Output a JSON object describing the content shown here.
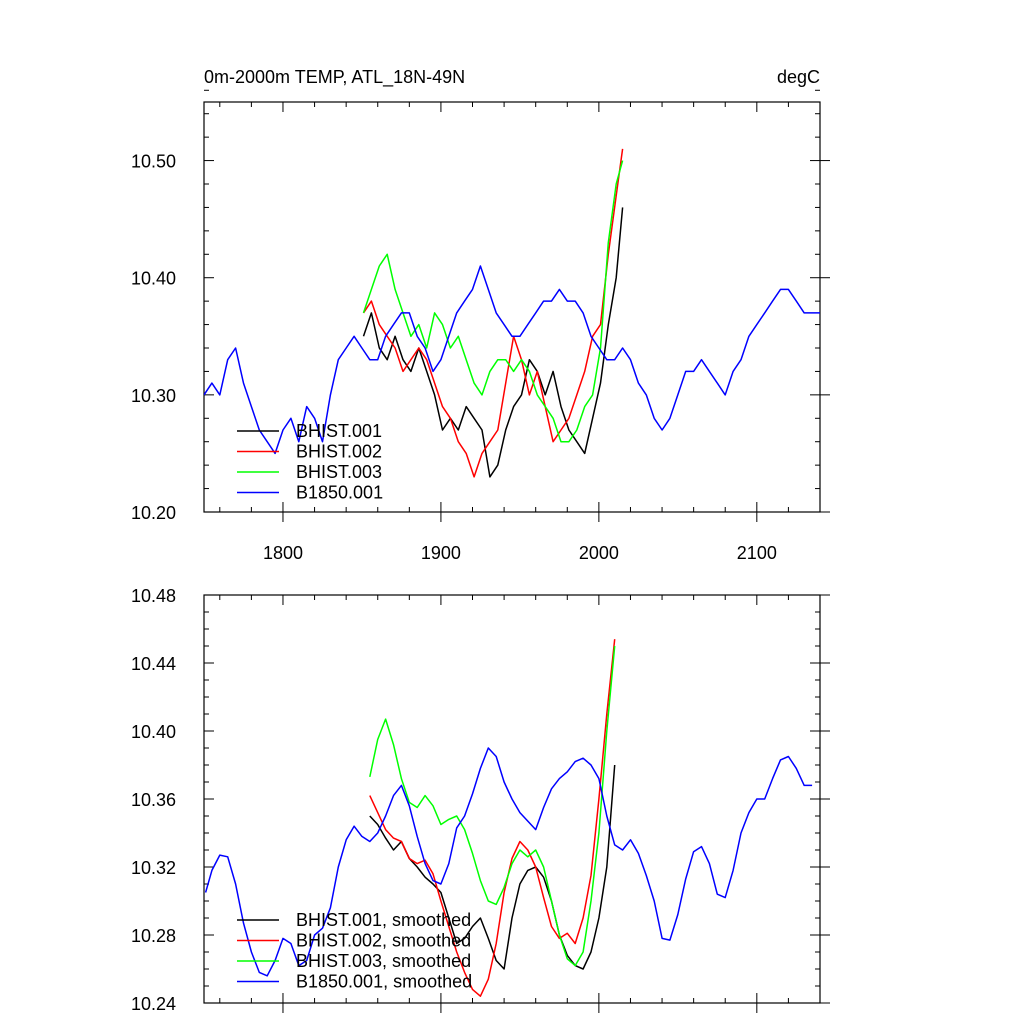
{
  "chart_data": [
    {
      "type": "line",
      "title": "0m-2000m TEMP, ATL_18N-49N",
      "units": "degC",
      "xlabel": "",
      "ylabel": "",
      "xlim": [
        1750,
        2140
      ],
      "ylim": [
        10.2,
        10.55
      ],
      "xticks": [
        1800,
        1900,
        2000,
        2100
      ],
      "xtick_labels": [
        "1800",
        "1900",
        "2000",
        "2100"
      ],
      "yticks": [
        10.2,
        10.3,
        10.4,
        10.5
      ],
      "ytick_labels": [
        "10.20",
        "10.30",
        "10.40",
        "10.50"
      ],
      "legend_position": "bottom-left",
      "grid": false,
      "series": [
        {
          "name": "BHIST.001",
          "color": "#000000",
          "x": [
            1851,
            1856,
            1861,
            1866,
            1871,
            1876,
            1881,
            1886,
            1891,
            1896,
            1901,
            1906,
            1911,
            1916,
            1921,
            1926,
            1931,
            1936,
            1941,
            1946,
            1951,
            1956,
            1961,
            1966,
            1971,
            1976,
            1981,
            1986,
            1991,
            1996,
            2001,
            2006,
            2011,
            2015
          ],
          "y": [
            10.35,
            10.37,
            10.34,
            10.33,
            10.35,
            10.33,
            10.32,
            10.34,
            10.32,
            10.3,
            10.27,
            10.28,
            10.27,
            10.29,
            10.28,
            10.27,
            10.23,
            10.24,
            10.27,
            10.29,
            10.3,
            10.33,
            10.32,
            10.3,
            10.32,
            10.29,
            10.27,
            10.26,
            10.25,
            10.28,
            10.31,
            10.36,
            10.4,
            10.46
          ]
        },
        {
          "name": "BHIST.002",
          "color": "#ff0000",
          "x": [
            1851,
            1856,
            1861,
            1866,
            1871,
            1876,
            1881,
            1886,
            1891,
            1896,
            1901,
            1906,
            1911,
            1916,
            1921,
            1926,
            1931,
            1936,
            1941,
            1946,
            1951,
            1956,
            1961,
            1966,
            1971,
            1976,
            1981,
            1986,
            1991,
            1996,
            2001,
            2006,
            2011,
            2015
          ],
          "y": [
            10.37,
            10.38,
            10.36,
            10.35,
            10.34,
            10.32,
            10.33,
            10.34,
            10.33,
            10.31,
            10.29,
            10.28,
            10.26,
            10.25,
            10.23,
            10.25,
            10.26,
            10.27,
            10.31,
            10.35,
            10.33,
            10.3,
            10.32,
            10.29,
            10.26,
            10.27,
            10.28,
            10.3,
            10.32,
            10.35,
            10.36,
            10.42,
            10.47,
            10.51
          ]
        },
        {
          "name": "BHIST.003",
          "color": "#00ff00",
          "x": [
            1851,
            1856,
            1861,
            1866,
            1871,
            1876,
            1881,
            1886,
            1891,
            1896,
            1901,
            1906,
            1911,
            1916,
            1921,
            1926,
            1931,
            1936,
            1941,
            1946,
            1951,
            1956,
            1961,
            1966,
            1971,
            1976,
            1981,
            1986,
            1991,
            1996,
            2001,
            2006,
            2011,
            2015
          ],
          "y": [
            10.37,
            10.39,
            10.41,
            10.42,
            10.39,
            10.37,
            10.35,
            10.36,
            10.34,
            10.37,
            10.36,
            10.34,
            10.35,
            10.33,
            10.31,
            10.3,
            10.32,
            10.33,
            10.33,
            10.32,
            10.33,
            10.32,
            10.3,
            10.29,
            10.28,
            10.26,
            10.26,
            10.27,
            10.29,
            10.3,
            10.34,
            10.43,
            10.48,
            10.5
          ]
        },
        {
          "name": "B1850.001",
          "color": "#0000ff",
          "x": [
            1750,
            1755,
            1760,
            1765,
            1770,
            1775,
            1780,
            1785,
            1790,
            1795,
            1800,
            1805,
            1810,
            1815,
            1820,
            1825,
            1830,
            1835,
            1840,
            1845,
            1850,
            1855,
            1860,
            1865,
            1870,
            1875,
            1880,
            1885,
            1890,
            1895,
            1900,
            1905,
            1910,
            1915,
            1920,
            1925,
            1930,
            1935,
            1940,
            1945,
            1950,
            1955,
            1960,
            1965,
            1970,
            1975,
            1980,
            1985,
            1990,
            1995,
            2000,
            2005,
            2010,
            2015,
            2020,
            2025,
            2030,
            2035,
            2040,
            2045,
            2050,
            2055,
            2060,
            2065,
            2070,
            2075,
            2080,
            2085,
            2090,
            2095,
            2100,
            2105,
            2110,
            2115,
            2120,
            2125,
            2130,
            2135,
            2140
          ],
          "y": [
            10.3,
            10.31,
            10.3,
            10.33,
            10.34,
            10.31,
            10.29,
            10.27,
            10.26,
            10.25,
            10.27,
            10.28,
            10.26,
            10.29,
            10.28,
            10.26,
            10.3,
            10.33,
            10.34,
            10.35,
            10.34,
            10.33,
            10.33,
            10.35,
            10.36,
            10.37,
            10.37,
            10.35,
            10.34,
            10.32,
            10.33,
            10.35,
            10.37,
            10.38,
            10.39,
            10.41,
            10.39,
            10.37,
            10.36,
            10.35,
            10.35,
            10.36,
            10.37,
            10.38,
            10.38,
            10.39,
            10.38,
            10.38,
            10.37,
            10.35,
            10.34,
            10.33,
            10.33,
            10.34,
            10.33,
            10.31,
            10.3,
            10.28,
            10.27,
            10.28,
            10.3,
            10.32,
            10.32,
            10.33,
            10.32,
            10.31,
            10.3,
            10.32,
            10.33,
            10.35,
            10.36,
            10.37,
            10.38,
            10.39,
            10.39,
            10.38,
            10.37,
            10.37,
            10.37
          ]
        }
      ]
    },
    {
      "type": "line",
      "title": "",
      "xlabel": "",
      "ylabel": "",
      "xlim": [
        1750,
        2140
      ],
      "ylim": [
        10.24,
        10.48
      ],
      "xticks": [
        1800,
        1900,
        2000,
        2100
      ],
      "xtick_labels": [],
      "yticks": [
        10.24,
        10.28,
        10.32,
        10.36,
        10.4,
        10.44,
        10.48
      ],
      "ytick_labels": [
        "10.24",
        "10.28",
        "10.32",
        "10.36",
        "10.40",
        "10.44",
        "10.48"
      ],
      "legend_position": "bottom-left",
      "grid": false,
      "series": [
        {
          "name": "BHIST.001, smoothed",
          "color": "#000000",
          "x": [
            1855,
            1860,
            1865,
            1870,
            1875,
            1880,
            1885,
            1890,
            1895,
            1900,
            1905,
            1910,
            1915,
            1920,
            1925,
            1930,
            1935,
            1940,
            1945,
            1950,
            1955,
            1960,
            1965,
            1970,
            1975,
            1980,
            1985,
            1990,
            1995,
            2000,
            2005,
            2010
          ],
          "y": [
            10.35,
            10.345,
            10.337,
            10.33,
            10.335,
            10.325,
            10.32,
            10.314,
            10.31,
            10.305,
            10.29,
            10.275,
            10.278,
            10.285,
            10.29,
            10.278,
            10.265,
            10.26,
            10.29,
            10.31,
            10.318,
            10.32,
            10.314,
            10.3,
            10.28,
            10.268,
            10.262,
            10.26,
            10.27,
            10.29,
            10.32,
            10.38
          ]
        },
        {
          "name": "BHIST.002, smoothed",
          "color": "#ff0000",
          "x": [
            1855,
            1860,
            1865,
            1870,
            1875,
            1880,
            1885,
            1890,
            1895,
            1900,
            1905,
            1910,
            1915,
            1920,
            1925,
            1930,
            1935,
            1940,
            1945,
            1950,
            1955,
            1960,
            1965,
            1970,
            1975,
            1980,
            1985,
            1990,
            1995,
            2000,
            2005,
            2010
          ],
          "y": [
            10.362,
            10.352,
            10.342,
            10.337,
            10.335,
            10.325,
            10.322,
            10.324,
            10.316,
            10.3,
            10.285,
            10.27,
            10.258,
            10.248,
            10.244,
            10.254,
            10.275,
            10.305,
            10.325,
            10.335,
            10.33,
            10.32,
            10.302,
            10.285,
            10.278,
            10.281,
            10.275,
            10.29,
            10.315,
            10.36,
            10.41,
            10.454
          ]
        },
        {
          "name": "BHIST.003, smoothed",
          "color": "#00ff00",
          "x": [
            1855,
            1860,
            1865,
            1870,
            1875,
            1880,
            1885,
            1890,
            1895,
            1900,
            1905,
            1910,
            1915,
            1920,
            1925,
            1930,
            1935,
            1940,
            1945,
            1950,
            1955,
            1960,
            1965,
            1970,
            1975,
            1980,
            1985,
            1990,
            1995,
            2000,
            2005,
            2010
          ],
          "y": [
            10.373,
            10.395,
            10.407,
            10.392,
            10.372,
            10.358,
            10.355,
            10.362,
            10.356,
            10.345,
            10.348,
            10.35,
            10.342,
            10.328,
            10.312,
            10.3,
            10.298,
            10.308,
            10.322,
            10.33,
            10.326,
            10.33,
            10.32,
            10.3,
            10.28,
            10.266,
            10.262,
            10.27,
            10.3,
            10.34,
            10.4,
            10.45
          ]
        },
        {
          "name": "B1850.001, smoothed",
          "color": "#0000ff",
          "x": [
            1751,
            1755,
            1760,
            1765,
            1770,
            1775,
            1780,
            1785,
            1790,
            1795,
            1800,
            1805,
            1810,
            1815,
            1820,
            1825,
            1830,
            1835,
            1840,
            1845,
            1850,
            1855,
            1860,
            1865,
            1870,
            1875,
            1880,
            1885,
            1890,
            1895,
            1900,
            1905,
            1910,
            1915,
            1920,
            1925,
            1930,
            1935,
            1940,
            1945,
            1950,
            1955,
            1960,
            1965,
            1970,
            1975,
            1980,
            1985,
            1990,
            1995,
            2000,
            2005,
            2010,
            2015,
            2020,
            2025,
            2030,
            2035,
            2040,
            2045,
            2050,
            2055,
            2060,
            2065,
            2070,
            2075,
            2080,
            2085,
            2090,
            2095,
            2100,
            2105,
            2110,
            2115,
            2120,
            2125,
            2130,
            2135
          ],
          "y": [
            10.305,
            10.318,
            10.327,
            10.326,
            10.31,
            10.287,
            10.27,
            10.258,
            10.256,
            10.265,
            10.278,
            10.275,
            10.262,
            10.265,
            10.28,
            10.284,
            10.296,
            10.32,
            10.336,
            10.344,
            10.338,
            10.335,
            10.34,
            10.35,
            10.362,
            10.368,
            10.356,
            10.338,
            10.322,
            10.312,
            10.31,
            10.322,
            10.343,
            10.35,
            10.363,
            10.378,
            10.39,
            10.385,
            10.37,
            10.36,
            10.352,
            10.347,
            10.342,
            10.355,
            10.366,
            10.372,
            10.376,
            10.382,
            10.384,
            10.38,
            10.372,
            10.35,
            10.333,
            10.33,
            10.336,
            10.328,
            10.315,
            10.3,
            10.278,
            10.277,
            10.292,
            10.313,
            10.329,
            10.332,
            10.322,
            10.304,
            10.302,
            10.318,
            10.34,
            10.352,
            10.36,
            10.36,
            10.372,
            10.383,
            10.385,
            10.378,
            10.368,
            10.368
          ]
        }
      ]
    }
  ]
}
